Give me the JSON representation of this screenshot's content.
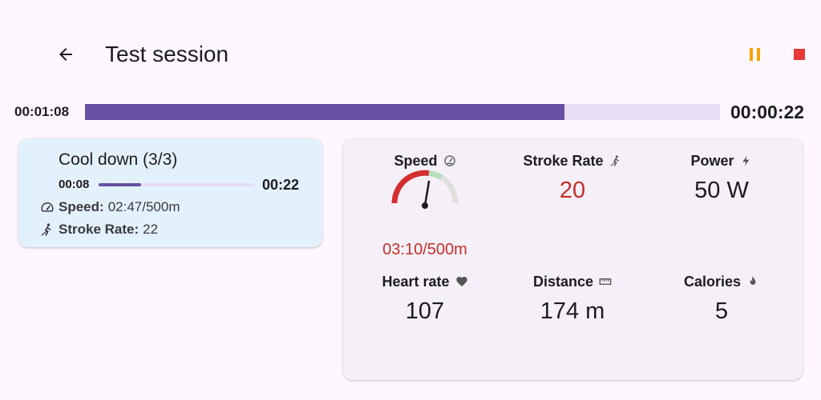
{
  "header": {
    "title": "Test session"
  },
  "session_progress": {
    "elapsed": "00:01:08",
    "remaining": "00:00:22",
    "fraction": 0.755
  },
  "interval": {
    "title": "Cool down (3/3)",
    "elapsed": "00:08",
    "remaining": "00:22",
    "fraction": 0.27,
    "targets": {
      "speed_label": "Speed:",
      "speed_value": "02:47/500m",
      "stroke_label": "Stroke Rate:",
      "stroke_value": "22"
    }
  },
  "metrics": {
    "speed": {
      "label": "Speed",
      "value": "03:10/500m",
      "icon": "speedometer-icon"
    },
    "stroke_rate": {
      "label": "Stroke Rate",
      "value": "20",
      "icon": "rowing-icon"
    },
    "power": {
      "label": "Power",
      "value": "50 W",
      "icon": "bolt-icon"
    },
    "heart_rate": {
      "label": "Heart rate",
      "value": "107",
      "icon": "heart-icon"
    },
    "distance": {
      "label": "Distance",
      "value": "174 m",
      "icon": "ruler-icon"
    },
    "calories": {
      "label": "Calories",
      "value": "5",
      "icon": "fire-icon"
    }
  },
  "colors": {
    "primary": "#6750a4",
    "track": "#e8ddf7",
    "pause": "#f5a300",
    "stop": "#e53935",
    "alert_red": "#c4302b",
    "interval_card": "#e3f1fc",
    "metrics_card": "#f5f0f8",
    "gauge_target": "#b5dfbd"
  }
}
